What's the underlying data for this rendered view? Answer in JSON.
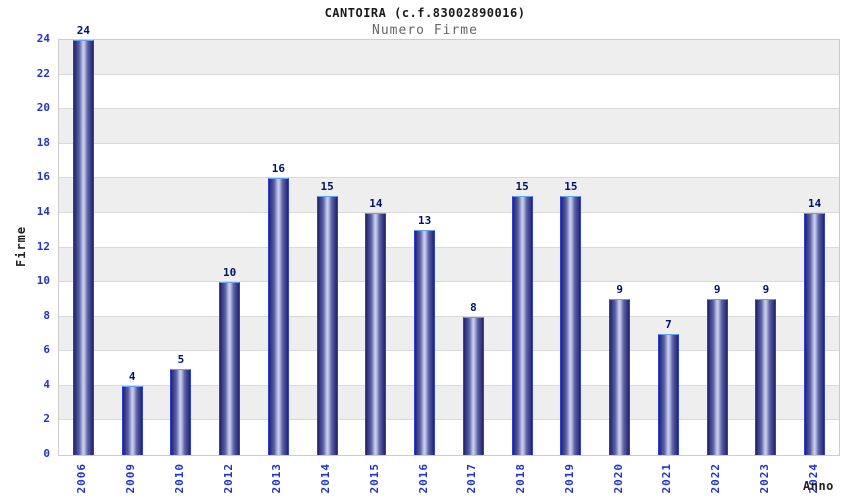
{
  "chart_data": {
    "type": "bar",
    "title": "CANTOIRA (c.f.83002890016)",
    "subtitle": "Numero Firme",
    "xlabel": "Anno",
    "ylabel": "Firme",
    "categories": [
      "2006",
      "2009",
      "2010",
      "2012",
      "2013",
      "2014",
      "2015",
      "2016",
      "2017",
      "2018",
      "2019",
      "2020",
      "2021",
      "2022",
      "2023",
      "2024"
    ],
    "values": [
      24,
      4,
      5,
      10,
      16,
      15,
      14,
      13,
      8,
      15,
      15,
      9,
      7,
      9,
      9,
      14
    ],
    "ylim": [
      0,
      24
    ],
    "ytick_step": 2,
    "legend": "none",
    "grid": "horizontal gray bands every 2 units with light gridlines",
    "bar_labels_shown": true,
    "colors": {
      "title": "#1a1a1a",
      "subtitle": "#666666",
      "axis_title": "#222222",
      "tick_label": "#2233cc",
      "value_label": "#001466",
      "bar_dark": "#23236b",
      "bar_mid": "#5b63a8",
      "bar_light": "#c6cbe9",
      "bar_edge": "#2f3ed6",
      "bar_edge_top": "#62a0f0",
      "band_gray": "#eeeeee",
      "grid_line": "#d9d9d9",
      "plot_border": "#cccccc"
    }
  }
}
